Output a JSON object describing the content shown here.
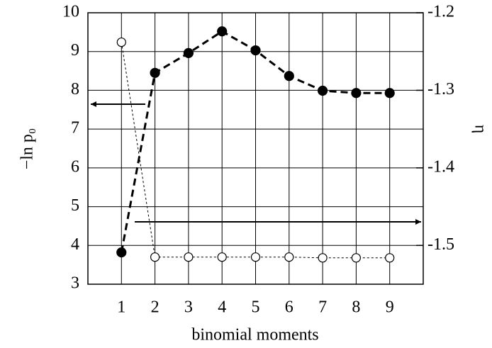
{
  "chart_data": {
    "type": "line",
    "xlabel": "binomial moments",
    "ylabel": "−ln p₀",
    "y2label": "η",
    "x": [
      1,
      2,
      3,
      4,
      5,
      6,
      7,
      8,
      9
    ],
    "xlim": [
      0,
      10
    ],
    "xticks": [
      1,
      2,
      3,
      4,
      5,
      6,
      7,
      8,
      9
    ],
    "ylim": [
      3,
      10
    ],
    "yticks": [
      3,
      4,
      5,
      6,
      7,
      8,
      9,
      10
    ],
    "y2lim": [
      -1.55,
      -1.2
    ],
    "y2ticks": [
      -1.2,
      -1.3,
      -1.4,
      -1.5
    ],
    "grid": true,
    "series": [
      {
        "name": "−ln p₀",
        "color": "#000000",
        "marker": "filled",
        "values": [
          3.82,
          8.45,
          8.96,
          9.52,
          9.03,
          8.37,
          7.99,
          7.93,
          7.93
        ]
      },
      {
        "name": "η",
        "color": "#000000",
        "marker": "open",
        "axis": "y2",
        "values": [
          -1.238,
          -1.515,
          -1.515,
          -1.515,
          -1.515,
          -1.515,
          -1.516,
          -1.516,
          -1.516
        ]
      }
    ]
  }
}
